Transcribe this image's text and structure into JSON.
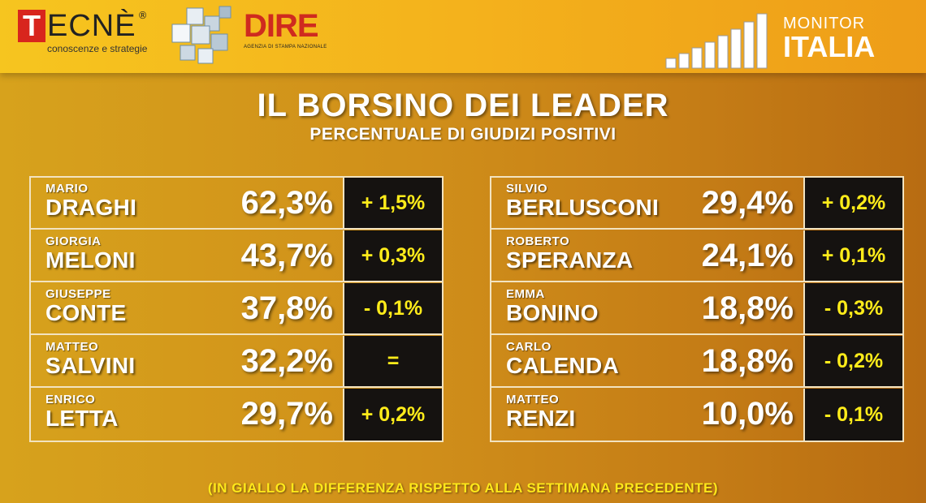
{
  "header": {
    "tecne": {
      "letter": "T",
      "rest": "ECNÈ",
      "reg": "®",
      "tagline": "conoscenze e strategie"
    },
    "dire": {
      "logo": "DIRE",
      "tagline": "AGENZIA DI STAMPA NAZIONALE"
    },
    "monitor": {
      "small": "MONITOR",
      "big": "ITALIA"
    }
  },
  "title": "IL BORSINO DEI LEADER",
  "subtitle": "PERCENTUALE DI GIUDIZI POSITIVI",
  "left_panel": [
    {
      "first": "MARIO",
      "last": "DRAGHI",
      "pct": "62,3%",
      "delta": "+ 1,5%"
    },
    {
      "first": "GIORGIA",
      "last": "MELONI",
      "pct": "43,7%",
      "delta": "+ 0,3%"
    },
    {
      "first": "GIUSEPPE",
      "last": "CONTE",
      "pct": "37,8%",
      "delta": "- 0,1%"
    },
    {
      "first": "MATTEO",
      "last": "SALVINI",
      "pct": "32,2%",
      "delta": "="
    },
    {
      "first": "ENRICO",
      "last": "LETTA",
      "pct": "29,7%",
      "delta": "+ 0,2%"
    }
  ],
  "right_panel": [
    {
      "first": "SILVIO",
      "last": "BERLUSCONI",
      "pct": "29,4%",
      "delta": "+ 0,2%"
    },
    {
      "first": "ROBERTO",
      "last": "SPERANZA",
      "pct": "24,1%",
      "delta": "+ 0,1%"
    },
    {
      "first": "EMMA",
      "last": "BONINO",
      "pct": "18,8%",
      "delta": "- 0,3%"
    },
    {
      "first": "CARLO",
      "last": "CALENDA",
      "pct": "18,8%",
      "delta": "- 0,2%"
    },
    {
      "first": "MATTEO",
      "last": "RENZI",
      "pct": "10,0%",
      "delta": "- 0,1%"
    }
  ],
  "footer": "(IN GIALLO LA DIFFERENZA RISPETTO ALLA SETTIMANA PRECEDENTE)",
  "colors": {
    "delta_yellow": "#ffec1a",
    "cell_dark": "#151210",
    "brand_red": "#d8251d"
  }
}
